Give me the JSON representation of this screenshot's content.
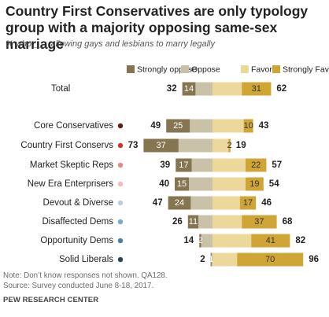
{
  "title": "Country First Conservatives are only typology group with a majority opposing same-sex marriage",
  "subtitle": "% who ___ allowing gays and lesbians to marry legally",
  "note": "Note: Don’t know responses not shown. QA128.",
  "source": "Source: Survey conducted June 8-18, 2017.",
  "org": "PEW RESEARCH CENTER",
  "colors": {
    "strongly_oppose": "#857550",
    "oppose": "#c9c1a8",
    "favor": "#ecd89a",
    "strongly_favor": "#cfa636",
    "dot_colors": [
      "#5e2318",
      "#c33b33",
      "#e58a80",
      "#f2bcb4",
      "#b6d1de",
      "#7eaac3",
      "#4e7f9e",
      "#2c4457"
    ]
  },
  "chart_data": {
    "type": "bar",
    "stacked": "diverging",
    "title": "Country First Conservatives are only typology group with a majority opposing same-sex marriage",
    "subtitle": "% who ___ allowing gays and lesbians to marry legally",
    "legend": [
      "Strongly oppose",
      "Oppose",
      "Favor",
      "Strongly Favor"
    ],
    "legend_position": "top",
    "categories": [
      "Total",
      "Core Conservatives",
      "Country First Conservs",
      "Market Skeptic Reps",
      "New Era Enterprisers",
      "Devout & Diverse",
      "Disaffected Dems",
      "Opportunity Dems",
      "Solid Liberals"
    ],
    "series": [
      {
        "name": "Strongly oppose",
        "values": [
          14,
          25,
          37,
          17,
          15,
          24,
          11,
          2,
          1
        ]
      },
      {
        "name": "Oppose",
        "values": [
          18,
          24,
          36,
          22,
          25,
          23,
          15,
          12,
          1
        ]
      },
      {
        "name": "Favor",
        "values": [
          31,
          33,
          17,
          35,
          35,
          29,
          31,
          41,
          26
        ]
      },
      {
        "name": "Strongly Favor",
        "values": [
          31,
          10,
          2,
          22,
          19,
          17,
          37,
          41,
          70
        ]
      }
    ],
    "oppose_totals": [
      32,
      49,
      73,
      39,
      40,
      47,
      26,
      14,
      2
    ],
    "favor_totals": [
      62,
      43,
      19,
      57,
      54,
      46,
      68,
      82,
      96
    ],
    "strong_labels": [
      {
        "oppose": "14",
        "favor": "31"
      },
      {
        "oppose": "25",
        "favor": "10"
      },
      {
        "oppose": "37",
        "favor": "2"
      },
      {
        "oppose": "17",
        "favor": "22"
      },
      {
        "oppose": "15",
        "favor": "19"
      },
      {
        "oppose": "24",
        "favor": "17"
      },
      {
        "oppose": "11",
        "favor": "37"
      },
      {
        "oppose": "2",
        "favor": "41"
      },
      {
        "oppose": "1",
        "favor": "70"
      }
    ]
  }
}
